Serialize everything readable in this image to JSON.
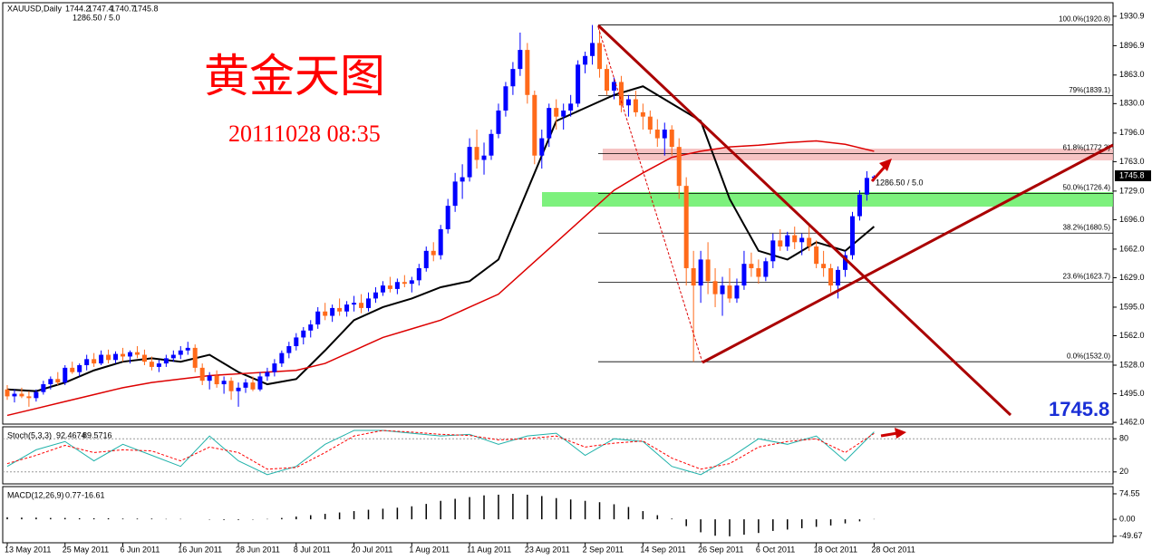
{
  "chart_data": {
    "type": "candlestick",
    "symbol": "XAUUSD,Daily",
    "spread_text": "1286.50 / 5.0",
    "title": "黄金天图",
    "timestamp": "20111028 08:35",
    "up_color": "#0000ff",
    "down_color": "#ff6a1a",
    "grid": false,
    "categories": [
      "13 May 2011",
      null,
      null,
      null,
      null,
      null,
      null,
      null,
      "25 May 2011",
      null,
      null,
      null,
      null,
      null,
      null,
      null,
      "6 Jun 2011",
      null,
      null,
      null,
      null,
      null,
      null,
      null,
      "16 Jun 2011",
      null,
      null,
      null,
      null,
      null,
      null,
      null,
      "28 Jun 2011",
      null,
      null,
      null,
      null,
      null,
      null,
      null,
      "8 Jul 2011",
      null,
      null,
      null,
      null,
      null,
      null,
      null,
      "20 Jul 2011",
      null,
      null,
      null,
      null,
      null,
      null,
      null,
      "1 Aug 2011",
      null,
      null,
      null,
      null,
      null,
      null,
      null,
      "11 Aug 2011",
      null,
      null,
      null,
      null,
      null,
      null,
      null,
      "23 Aug 2011",
      null,
      null,
      null,
      null,
      null,
      null,
      null,
      "2 Sep 2011",
      null,
      null,
      null,
      null,
      null,
      null,
      null,
      "14 Sep 2011",
      null,
      null,
      null,
      null,
      null,
      null,
      null,
      "26 Sep 2011",
      null,
      null,
      null,
      null,
      null,
      null,
      null,
      "6 Oct 2011",
      null,
      null,
      null,
      null,
      null,
      null,
      null,
      "18 Oct 2011",
      null,
      null,
      null,
      null,
      null,
      null,
      null,
      "28 Oct 2011"
    ],
    "ohlc": [
      [
        1500,
        1505,
        1488,
        1492
      ],
      [
        1492,
        1500,
        1485,
        1495
      ],
      [
        1495,
        1502,
        1490,
        1492
      ],
      [
        1492,
        1498,
        1480,
        1490
      ],
      [
        1490,
        1500,
        1486,
        1497
      ],
      [
        1497,
        1510,
        1494,
        1506
      ],
      [
        1506,
        1515,
        1500,
        1512
      ],
      [
        1512,
        1520,
        1505,
        1508
      ],
      [
        1508,
        1528,
        1505,
        1525
      ],
      [
        1525,
        1532,
        1518,
        1520
      ],
      [
        1520,
        1530,
        1515,
        1528
      ],
      [
        1528,
        1540,
        1522,
        1535
      ],
      [
        1535,
        1542,
        1526,
        1530
      ],
      [
        1530,
        1545,
        1528,
        1540
      ],
      [
        1540,
        1546,
        1530,
        1534
      ],
      [
        1534,
        1544,
        1530,
        1541
      ],
      [
        1541,
        1548,
        1532,
        1538
      ],
      [
        1538,
        1545,
        1530,
        1543
      ],
      [
        1543,
        1550,
        1536,
        1540
      ],
      [
        1540,
        1546,
        1528,
        1532
      ],
      [
        1532,
        1538,
        1522,
        1526
      ],
      [
        1526,
        1534,
        1520,
        1530
      ],
      [
        1530,
        1540,
        1526,
        1536
      ],
      [
        1536,
        1545,
        1532,
        1540
      ],
      [
        1540,
        1550,
        1535,
        1545
      ],
      [
        1545,
        1555,
        1540,
        1548
      ],
      [
        1548,
        1552,
        1520,
        1525
      ],
      [
        1525,
        1530,
        1505,
        1510
      ],
      [
        1510,
        1520,
        1500,
        1516
      ],
      [
        1516,
        1522,
        1502,
        1506
      ],
      [
        1506,
        1515,
        1495,
        1510
      ],
      [
        1510,
        1514,
        1488,
        1498
      ],
      [
        1498,
        1508,
        1480,
        1502
      ],
      [
        1502,
        1512,
        1496,
        1508
      ],
      [
        1508,
        1515,
        1498,
        1500
      ],
      [
        1500,
        1520,
        1498,
        1515
      ],
      [
        1515,
        1525,
        1510,
        1520
      ],
      [
        1520,
        1535,
        1515,
        1530
      ],
      [
        1530,
        1545,
        1526,
        1542
      ],
      [
        1542,
        1555,
        1536,
        1550
      ],
      [
        1550,
        1565,
        1545,
        1560
      ],
      [
        1560,
        1572,
        1552,
        1568
      ],
      [
        1568,
        1580,
        1560,
        1575
      ],
      [
        1575,
        1595,
        1570,
        1590
      ],
      [
        1590,
        1600,
        1580,
        1585
      ],
      [
        1585,
        1598,
        1578,
        1594
      ],
      [
        1594,
        1605,
        1585,
        1590
      ],
      [
        1590,
        1602,
        1584,
        1598
      ],
      [
        1598,
        1608,
        1590,
        1600
      ],
      [
        1600,
        1610,
        1588,
        1594
      ],
      [
        1594,
        1612,
        1590,
        1605
      ],
      [
        1605,
        1618,
        1600,
        1612
      ],
      [
        1612,
        1625,
        1608,
        1620
      ],
      [
        1620,
        1630,
        1612,
        1616
      ],
      [
        1616,
        1628,
        1610,
        1624
      ],
      [
        1624,
        1632,
        1618,
        1622
      ],
      [
        1622,
        1630,
        1612,
        1626
      ],
      [
        1626,
        1645,
        1620,
        1640
      ],
      [
        1640,
        1665,
        1636,
        1660
      ],
      [
        1660,
        1670,
        1648,
        1655
      ],
      [
        1655,
        1690,
        1650,
        1685
      ],
      [
        1685,
        1720,
        1680,
        1712
      ],
      [
        1712,
        1750,
        1705,
        1740
      ],
      [
        1740,
        1760,
        1720,
        1745
      ],
      [
        1745,
        1790,
        1740,
        1780
      ],
      [
        1780,
        1800,
        1755,
        1765
      ],
      [
        1765,
        1785,
        1748,
        1770
      ],
      [
        1770,
        1800,
        1765,
        1795
      ],
      [
        1795,
        1830,
        1790,
        1822
      ],
      [
        1822,
        1855,
        1815,
        1850
      ],
      [
        1850,
        1878,
        1840,
        1870
      ],
      [
        1870,
        1912,
        1862,
        1892
      ],
      [
        1892,
        1900,
        1830,
        1840
      ],
      [
        1840,
        1845,
        1760,
        1770
      ],
      [
        1770,
        1800,
        1755,
        1790
      ],
      [
        1790,
        1830,
        1780,
        1825
      ],
      [
        1825,
        1835,
        1800,
        1815
      ],
      [
        1815,
        1830,
        1800,
        1822
      ],
      [
        1822,
        1840,
        1815,
        1830
      ],
      [
        1830,
        1880,
        1826,
        1875
      ],
      [
        1875,
        1890,
        1865,
        1885
      ],
      [
        1885,
        1920.8,
        1875,
        1900
      ],
      [
        1900,
        1915,
        1860,
        1870
      ],
      [
        1870,
        1875,
        1840,
        1845
      ],
      [
        1845,
        1860,
        1835,
        1855
      ],
      [
        1855,
        1862,
        1820,
        1828
      ],
      [
        1828,
        1840,
        1815,
        1835
      ],
      [
        1835,
        1845,
        1815,
        1820
      ],
      [
        1820,
        1830,
        1800,
        1815
      ],
      [
        1815,
        1822,
        1795,
        1800
      ],
      [
        1800,
        1812,
        1780,
        1790
      ],
      [
        1790,
        1808,
        1770,
        1800
      ],
      [
        1800,
        1805,
        1770,
        1780
      ],
      [
        1780,
        1790,
        1720,
        1735
      ],
      [
        1735,
        1745,
        1620,
        1640
      ],
      [
        1640,
        1660,
        1532,
        1620
      ],
      [
        1620,
        1660,
        1600,
        1650
      ],
      [
        1650,
        1670,
        1610,
        1625
      ],
      [
        1625,
        1640,
        1595,
        1610
      ],
      [
        1610,
        1630,
        1585,
        1620
      ],
      [
        1620,
        1640,
        1600,
        1605
      ],
      [
        1605,
        1628,
        1600,
        1620
      ],
      [
        1620,
        1660,
        1615,
        1645
      ],
      [
        1645,
        1658,
        1630,
        1640
      ],
      [
        1640,
        1650,
        1622,
        1630
      ],
      [
        1630,
        1652,
        1625,
        1648
      ],
      [
        1648,
        1680,
        1640,
        1672
      ],
      [
        1672,
        1685,
        1660,
        1665
      ],
      [
        1665,
        1682,
        1660,
        1678
      ],
      [
        1678,
        1688,
        1662,
        1670
      ],
      [
        1670,
        1680,
        1655,
        1675
      ],
      [
        1675,
        1690,
        1660,
        1665
      ],
      [
        1665,
        1672,
        1640,
        1645
      ],
      [
        1645,
        1660,
        1630,
        1640
      ],
      [
        1640,
        1645,
        1612,
        1620
      ],
      [
        1620,
        1642,
        1605,
        1638
      ],
      [
        1638,
        1660,
        1630,
        1655
      ],
      [
        1655,
        1705,
        1650,
        1700
      ],
      [
        1700,
        1730,
        1695,
        1725
      ],
      [
        1725,
        1752,
        1718,
        1744.2
      ],
      [
        1744.2,
        1747.4,
        1740.7,
        1745.8
      ]
    ],
    "ylim": [
      1460,
      1946.5
    ],
    "yticks": [
      1930.9,
      1896.9,
      {
        "value": 1863,
        "label": "1863.0"
      },
      {
        "value": 1830,
        "label": "1830.0"
      },
      {
        "value": 1796,
        "label": "1796.0"
      },
      {
        "value": 1763,
        "label": "1763.0"
      },
      {
        "value": 1729,
        "label": "1729.0"
      },
      {
        "value": 1696,
        "label": "1696.0"
      },
      {
        "value": 1662,
        "label": "1662.0"
      },
      {
        "value": 1629,
        "label": "1629.0"
      },
      {
        "value": 1595,
        "label": "1595.0"
      },
      {
        "value": 1562,
        "label": "1562.0"
      },
      {
        "value": 1528,
        "label": "1528.0"
      },
      {
        "value": 1495,
        "label": "1495.0"
      },
      {
        "value": 1462,
        "label": "1462.0"
      }
    ],
    "fib_levels": [
      {
        "value": 1920.8,
        "label": "100.0%(1920.8)"
      },
      {
        "value": 1839.1,
        "label": "79%(1839.1)"
      },
      {
        "value": 1772.3,
        "label": "61.8%(1772.3)"
      },
      {
        "value": 1726.4,
        "label": "50.0%(1726.4)"
      },
      {
        "value": 1680.5,
        "label": "38.2%(1680.5)"
      },
      {
        "value": 1623.7,
        "label": "23.6%(1623.7)"
      },
      {
        "value": 1532,
        "label": "0.0%(1532.0)"
      }
    ],
    "x": [
      0,
      4,
      8,
      12,
      16,
      20,
      24,
      28,
      32,
      36,
      40,
      44,
      48,
      52,
      56,
      60,
      64,
      68,
      72,
      76,
      80,
      84,
      88,
      92,
      96,
      100,
      104,
      108,
      112,
      116,
      120
    ],
    "series": [
      {
        "color": "#000000",
        "values": [
          1500,
          1498,
          1508,
          1522,
          1532,
          1536,
          1532,
          1540,
          1520,
          1506,
          1512,
          1545,
          1580,
          1595,
          1605,
          1618,
          1625,
          1650,
          1730,
          1810,
          1825,
          1840,
          1850,
          1830,
          1810,
          1720,
          1660,
          1650,
          1670,
          1660,
          1688
        ]
      },
      {
        "color": "#dd0000",
        "values": [
          1470,
          1478,
          1486,
          1494,
          1502,
          1508,
          1512,
          1516,
          1518,
          1520,
          1522,
          1530,
          1545,
          1560,
          1570,
          1580,
          1595,
          1610,
          1640,
          1670,
          1700,
          1730,
          1750,
          1768,
          1775,
          1780,
          1782,
          1785,
          1787,
          1783,
          1775
        ]
      }
    ],
    "stoch": {
      "label": "Stoch(5,3,3)",
      "ylim": [
        0,
        100
      ],
      "yticks": [
        80,
        20
      ],
      "k": {
        "color": "#20b2aa",
        "values": [
          30,
          60,
          75,
          40,
          70,
          50,
          30,
          85,
          40,
          15,
          30,
          70,
          95,
          95,
          90,
          85,
          88,
          70,
          85,
          90,
          50,
          80,
          75,
          30,
          15,
          45,
          80,
          70,
          85,
          40,
          92.4674
        ]
      },
      "d": {
        "color": "#ff0000",
        "values": [
          35,
          50,
          68,
          55,
          60,
          58,
          40,
          65,
          55,
          25,
          28,
          55,
          85,
          95,
          92,
          88,
          86,
          78,
          80,
          85,
          65,
          72,
          76,
          45,
          25,
          35,
          65,
          75,
          80,
          55,
          89.5716
        ]
      }
    },
    "macd": {
      "label": "MACD(12,26,9)",
      "ylim": [
        -66,
        93
      ],
      "yticks": [
        74.55,
        {
          "value": 0,
          "label": "0.00"
        },
        -49.67
      ],
      "signal": -16.61,
      "x": [
        0,
        2,
        4,
        6,
        8,
        10,
        12,
        14,
        16,
        18,
        20,
        22,
        24,
        26,
        28,
        30,
        32,
        34,
        36,
        38,
        40,
        42,
        44,
        46,
        48,
        50,
        52,
        54,
        56,
        58,
        60,
        62,
        64,
        66,
        68,
        70,
        72,
        74,
        76,
        78,
        80,
        82,
        84,
        86,
        88,
        90,
        92,
        94,
        96,
        98,
        100,
        102,
        104,
        106,
        108,
        110,
        112,
        114,
        116,
        118,
        120
      ],
      "values": [
        6,
        5,
        5,
        4,
        4,
        3,
        3,
        3,
        2,
        2,
        2,
        1,
        1,
        0,
        -1,
        -2,
        -2,
        -1,
        1,
        4,
        8,
        12,
        16,
        20,
        24,
        28,
        31,
        34,
        38,
        45,
        54,
        60,
        65,
        70,
        72,
        74.55,
        72,
        68,
        62,
        58,
        54,
        50,
        44,
        36,
        24,
        12,
        2,
        -20,
        -38,
        -48,
        -49.67,
        -45,
        -40,
        -34,
        -30,
        -26,
        -22,
        -18,
        -12,
        -6,
        0.77
      ]
    }
  }
}
